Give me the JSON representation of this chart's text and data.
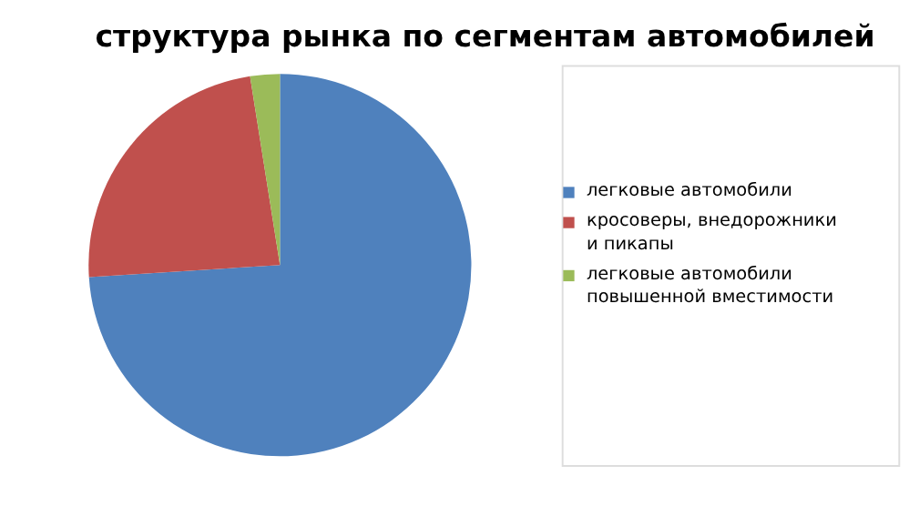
{
  "chart_data": {
    "type": "pie",
    "title": "структура рынка по сегментам автомобилей",
    "categories": [
      "легковые автомобили",
      "кросоверы, внедорожники и пикапы",
      "легковые автомобили повышенной вместимости"
    ],
    "values": [
      74,
      23.5,
      2.5
    ],
    "colors": [
      "#4f81bd",
      "#c0504d",
      "#9bbb59"
    ],
    "legend": "right"
  }
}
